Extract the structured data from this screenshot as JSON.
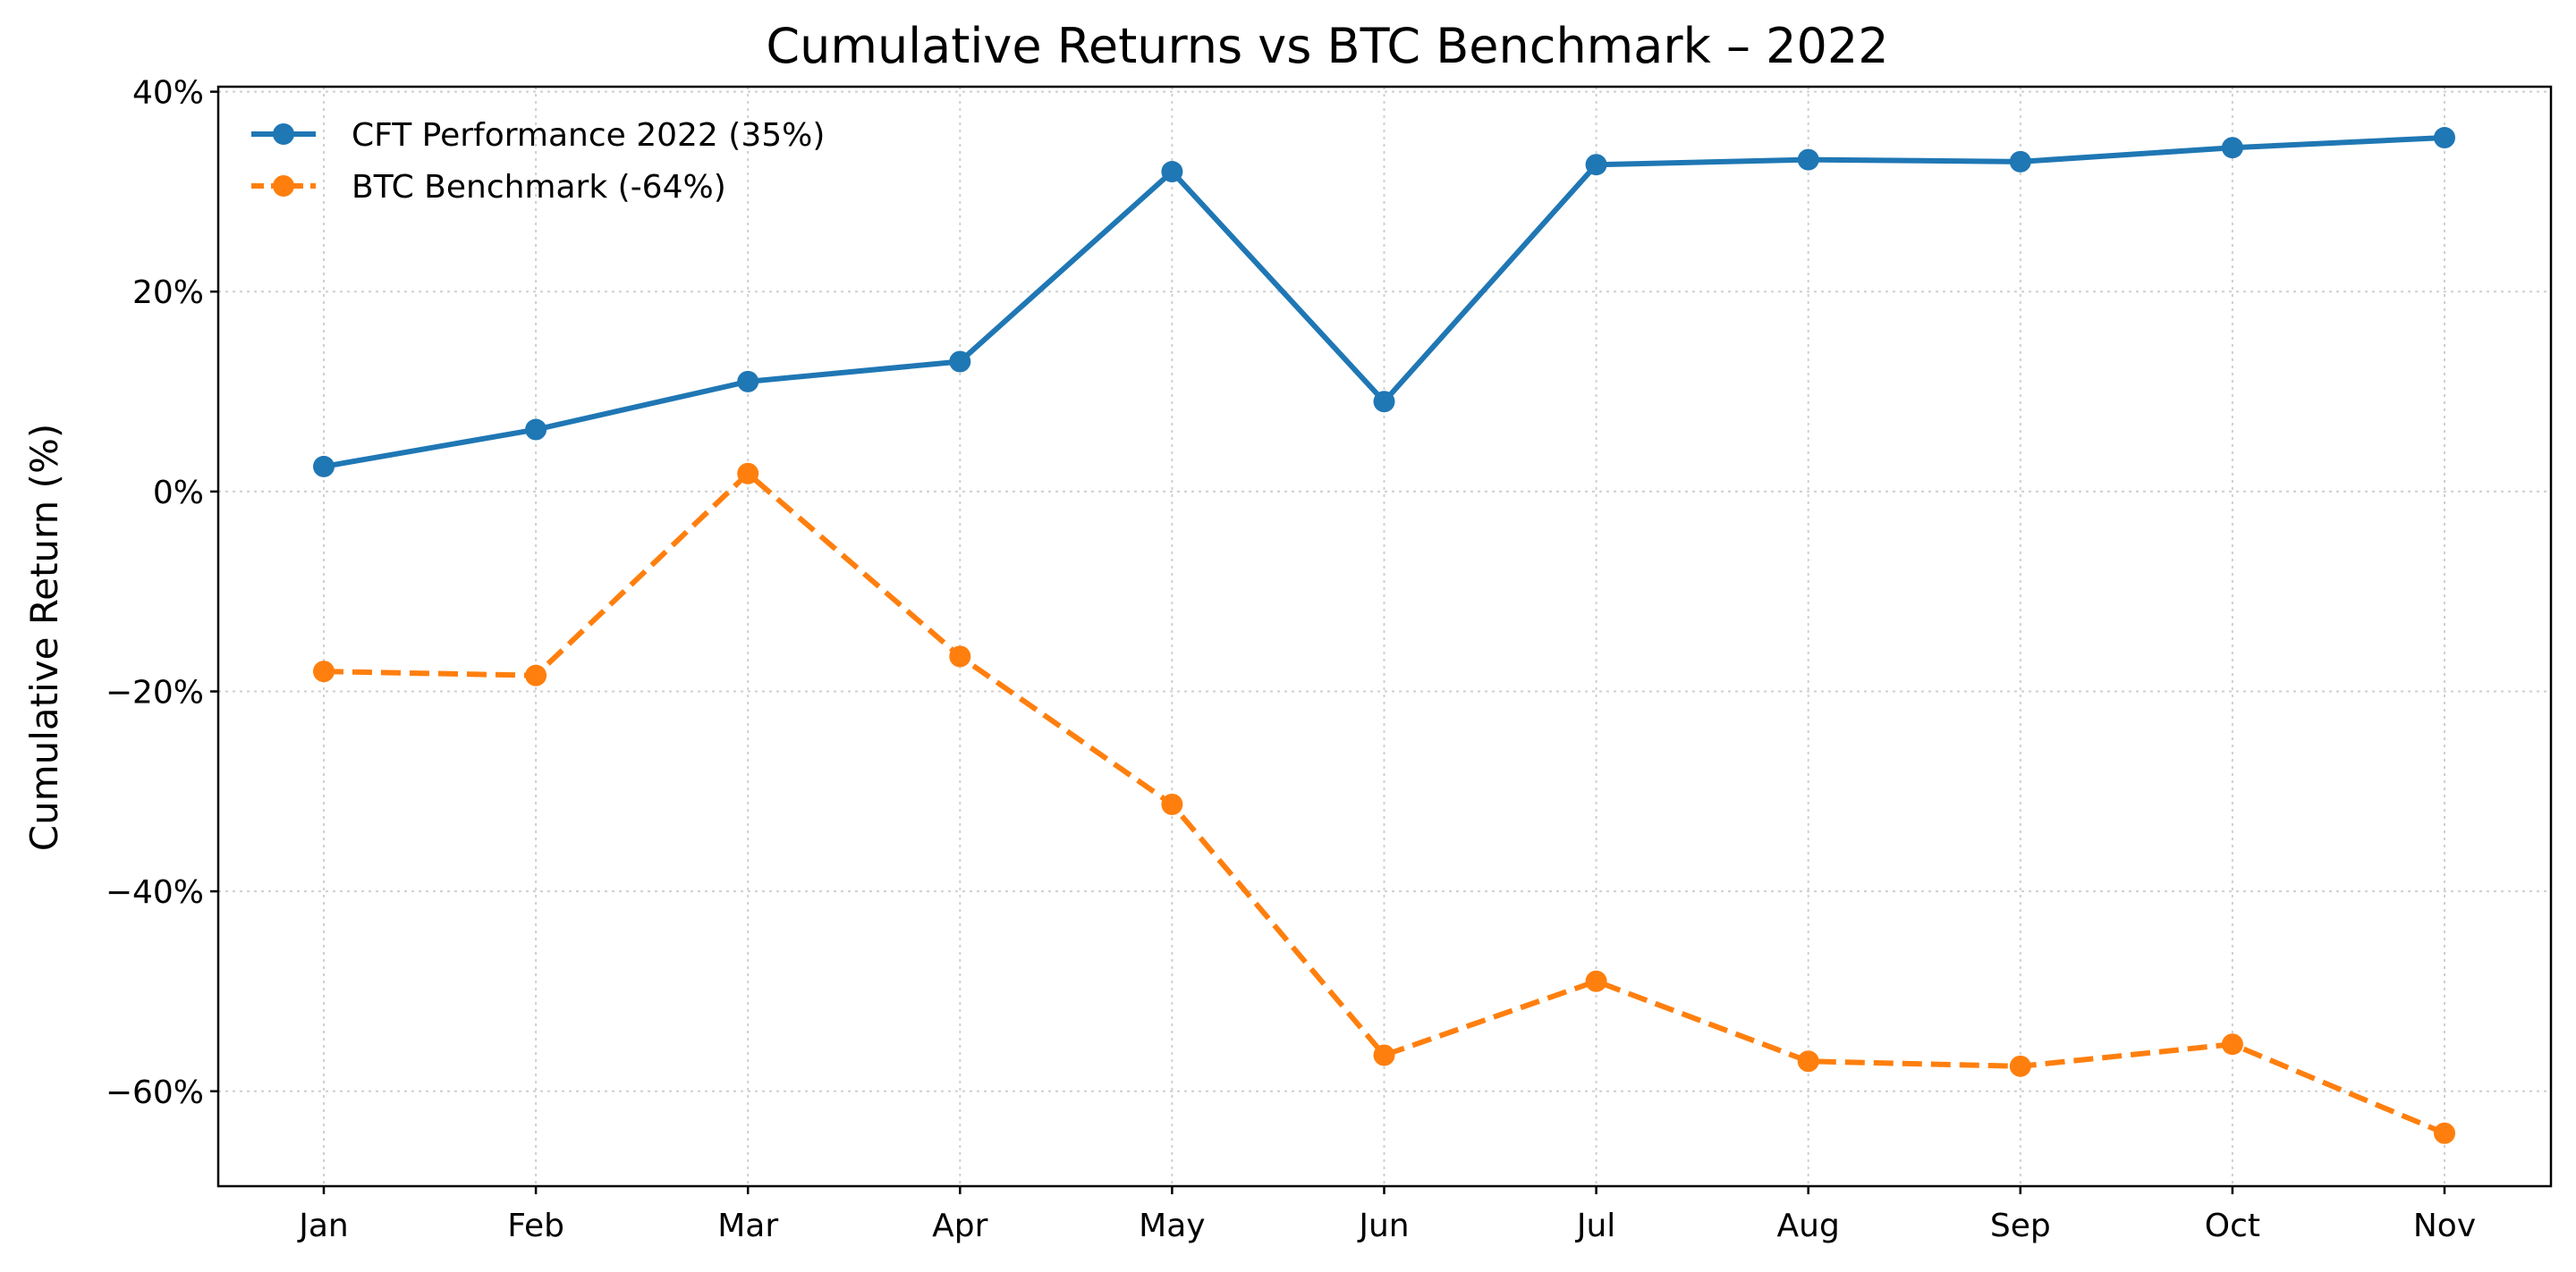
{
  "chart_data": {
    "type": "line",
    "title": "Cumulative Returns vs BTC Benchmark – 2022",
    "xlabel": "",
    "ylabel": "Cumulative Return (%)",
    "categories": [
      "Jan",
      "Feb",
      "Mar",
      "Apr",
      "May",
      "Jun",
      "Jul",
      "Aug",
      "Sep",
      "Oct",
      "Nov"
    ],
    "ylim": [
      -69.5,
      40.5
    ],
    "yticks": [
      40,
      20,
      0,
      -20,
      -40,
      -60
    ],
    "ytick_labels": [
      "40%",
      "20%",
      "0%",
      "−20%",
      "−40%",
      "−60%"
    ],
    "grid": true,
    "legend_position": "top-left",
    "series": [
      {
        "name": "CFT Performance 2022 (35%)",
        "color": "#1f77b4",
        "line_style": "solid",
        "marker": "circle",
        "values": [
          2.5,
          6.2,
          11.0,
          13.0,
          32.0,
          9.0,
          32.7,
          33.2,
          33.0,
          34.4,
          35.4
        ]
      },
      {
        "name": "BTC Benchmark (-64%)",
        "color": "#ff7f0e",
        "line_style": "dashed",
        "marker": "circle",
        "values": [
          -18.0,
          -18.4,
          1.8,
          -16.5,
          -31.3,
          -56.4,
          -49.0,
          -57.0,
          -57.5,
          -55.3,
          -64.2
        ]
      }
    ]
  }
}
